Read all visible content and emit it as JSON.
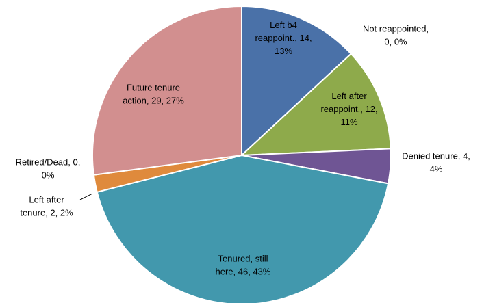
{
  "chart_data": {
    "type": "pie",
    "title": "",
    "slices": [
      {
        "name": "Left b4 reappoint.",
        "value": 14,
        "percent": "13%",
        "color": "#4a71a8",
        "label_lines": [
          "Left b4",
          "reappoint., 14,",
          "13%"
        ]
      },
      {
        "name": "Not reappointed",
        "value": 0,
        "percent": "0%",
        "color": "#c0504d",
        "label_lines": [
          "Not reappointed,",
          "0, 0%"
        ]
      },
      {
        "name": "Left after reappoint.",
        "value": 12,
        "percent": "11%",
        "color": "#8eaa4b",
        "label_lines": [
          "Left after",
          "reappoint., 12,",
          "11%"
        ]
      },
      {
        "name": "Denied tenure",
        "value": 4,
        "percent": "4%",
        "color": "#6f5594",
        "label_lines": [
          "Denied tenure, 4,",
          "4%"
        ]
      },
      {
        "name": "Tenured, still here",
        "value": 46,
        "percent": "43%",
        "color": "#4298ad",
        "label_lines": [
          "Tenured, still",
          "here, 46, 43%"
        ]
      },
      {
        "name": "Left after tenure",
        "value": 2,
        "percent": "2%",
        "color": "#df8a3c",
        "label_lines": [
          "Left after",
          "tenure, 2, 2%"
        ]
      },
      {
        "name": "Retired/Dead",
        "value": 0,
        "percent": "0%",
        "color": "#4a71a8",
        "label_lines": [
          "Retired/Dead, 0,",
          "0%"
        ]
      },
      {
        "name": "Future tenure action",
        "value": 29,
        "percent": "27%",
        "color": "#d28f8f",
        "label_lines": [
          "Future tenure",
          "action, 29, 27%"
        ]
      }
    ]
  }
}
